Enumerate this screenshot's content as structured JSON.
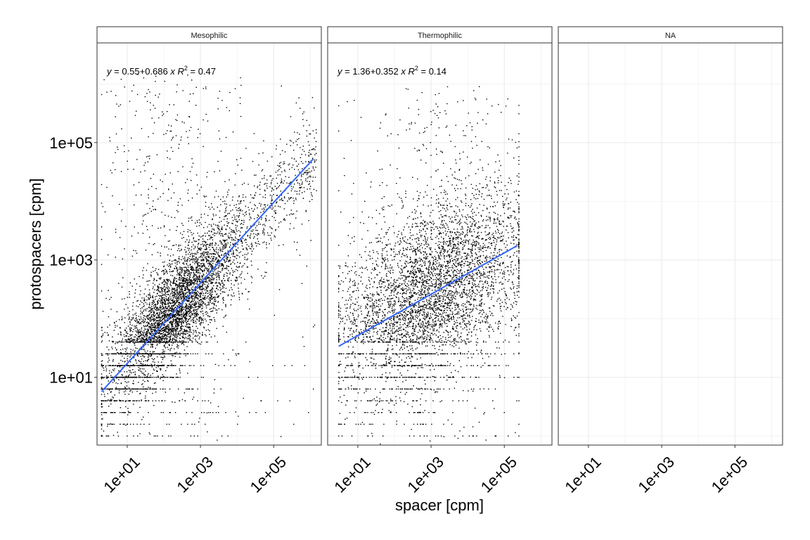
{
  "chart_data": {
    "type": "scatter",
    "xlabel": "spacer [cpm]",
    "ylabel": "protospacers  [cpm]",
    "x_scale": "log10",
    "y_scale": "log10",
    "xlim": [
      1.5,
      2000000
    ],
    "ylim": [
      0.7,
      5000000
    ],
    "x_ticks": [
      10,
      1000,
      100000
    ],
    "x_tick_labels": [
      "1e+01",
      "1e+03",
      "1e+05"
    ],
    "y_ticks": [
      10,
      1000,
      100000
    ],
    "y_tick_labels": [
      "1e+01",
      "1e+03",
      "1e+05"
    ],
    "grid": true,
    "panels": [
      {
        "name": "Mesophilic",
        "equation": {
          "intercept": "0.55",
          "slope": "0.686",
          "r2": "0.47"
        },
        "fit": {
          "intercept": 0.55,
          "slope": 0.686,
          "x_range": [
            2,
            1200000
          ]
        },
        "cloud": {
          "x_range": [
            2,
            1500000
          ],
          "y_range": [
            0.7,
            1500000
          ],
          "approx_points": 6000
        }
      },
      {
        "name": "Thermophilic",
        "equation": {
          "intercept": "1.36",
          "slope": "0.352",
          "r2": "0.14"
        },
        "fit": {
          "intercept": 1.36,
          "slope": 0.352,
          "x_range": [
            3,
            220000
          ]
        },
        "cloud": {
          "x_range": [
            3,
            250000
          ],
          "y_range": [
            0.7,
            900000
          ],
          "approx_points": 5000
        }
      },
      {
        "name": "NA",
        "equation": null,
        "fit": null,
        "cloud": null
      }
    ],
    "colors": {
      "points": "#000000",
      "fit_line": "#3366FF",
      "grid": "#ebebeb",
      "panel_border": "#333333"
    }
  }
}
